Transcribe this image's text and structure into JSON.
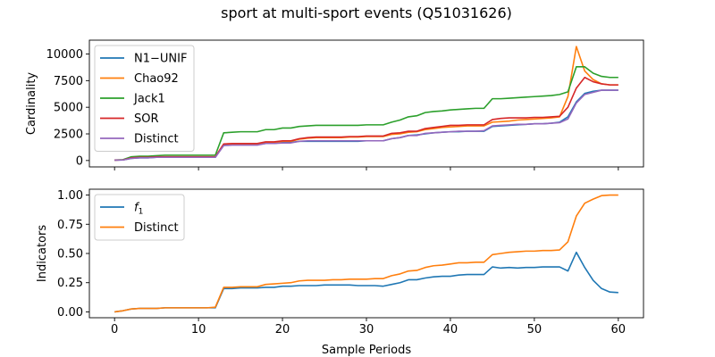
{
  "figure_title": "sport at multi-sport events (Q51031626)",
  "chart_data": [
    {
      "type": "line",
      "title": "",
      "xlabel": "",
      "ylabel": "Cardinality",
      "xlim": [
        -3,
        63
      ],
      "ylim": [
        -600,
        11300
      ],
      "x_ticks": [
        0,
        10,
        20,
        30,
        40,
        50,
        60
      ],
      "y_ticks": [
        0,
        2500,
        5000,
        7500,
        10000
      ],
      "y_tick_labels": [
        "0",
        "2500",
        "5000",
        "7500",
        "10000"
      ],
      "show_x_tick_labels": false,
      "legend_position": "upper-left",
      "x": [
        0,
        1,
        2,
        3,
        4,
        5,
        6,
        7,
        8,
        9,
        10,
        11,
        12,
        13,
        14,
        15,
        16,
        17,
        18,
        19,
        20,
        21,
        22,
        23,
        24,
        25,
        26,
        27,
        28,
        29,
        30,
        31,
        32,
        33,
        34,
        35,
        36,
        37,
        38,
        39,
        40,
        41,
        42,
        43,
        44,
        45,
        46,
        47,
        48,
        49,
        50,
        51,
        52,
        53,
        54,
        55,
        56,
        57,
        58,
        59,
        60
      ],
      "series": [
        {
          "name": "N1−UNIF",
          "color": "#1f77b4",
          "values": [
            30,
            50,
            200,
            250,
            250,
            300,
            300,
            300,
            300,
            300,
            300,
            300,
            300,
            1500,
            1500,
            1500,
            1500,
            1500,
            1600,
            1600,
            1700,
            1700,
            1800,
            1800,
            1800,
            1800,
            1800,
            1800,
            1800,
            1800,
            1850,
            1850,
            1850,
            2050,
            2150,
            2350,
            2400,
            2500,
            2600,
            2650,
            2700,
            2700,
            2750,
            2750,
            2750,
            3200,
            3250,
            3300,
            3350,
            3400,
            3450,
            3450,
            3500,
            3600,
            4100,
            5500,
            6300,
            6500,
            6600,
            6600,
            6600
          ]
        },
        {
          "name": "Chao92",
          "color": "#ff7f0e",
          "values": [
            30,
            60,
            250,
            300,
            300,
            350,
            350,
            350,
            350,
            350,
            350,
            350,
            350,
            1550,
            1550,
            1550,
            1550,
            1550,
            1700,
            1700,
            1800,
            1800,
            2000,
            2100,
            2150,
            2150,
            2150,
            2150,
            2200,
            2200,
            2250,
            2250,
            2250,
            2450,
            2500,
            2650,
            2700,
            2900,
            3000,
            3100,
            3150,
            3200,
            3250,
            3250,
            3250,
            3600,
            3650,
            3700,
            3800,
            3850,
            3900,
            3950,
            4000,
            4100,
            6000,
            10700,
            8400,
            7600,
            7200,
            7100,
            7100
          ]
        },
        {
          "name": "Jack1",
          "color": "#2ca02c",
          "values": [
            50,
            80,
            350,
            400,
            400,
            450,
            500,
            500,
            500,
            500,
            500,
            500,
            500,
            2600,
            2650,
            2700,
            2700,
            2700,
            2900,
            2900,
            3050,
            3050,
            3200,
            3250,
            3300,
            3300,
            3300,
            3300,
            3300,
            3300,
            3350,
            3350,
            3350,
            3600,
            3800,
            4100,
            4200,
            4500,
            4600,
            4650,
            4750,
            4800,
            4850,
            4900,
            4900,
            5800,
            5800,
            5850,
            5900,
            5950,
            6000,
            6050,
            6100,
            6200,
            6450,
            8800,
            8800,
            8200,
            7900,
            7800,
            7800
          ]
        },
        {
          "name": "SOR",
          "color": "#d62728",
          "values": [
            40,
            60,
            250,
            300,
            300,
            350,
            350,
            350,
            350,
            350,
            350,
            350,
            350,
            1550,
            1600,
            1600,
            1600,
            1600,
            1750,
            1750,
            1850,
            1850,
            2050,
            2150,
            2200,
            2200,
            2200,
            2200,
            2250,
            2250,
            2300,
            2300,
            2300,
            2550,
            2600,
            2750,
            2750,
            3000,
            3100,
            3200,
            3300,
            3300,
            3350,
            3350,
            3350,
            3850,
            3950,
            4000,
            4000,
            4000,
            4050,
            4050,
            4100,
            4150,
            5000,
            6800,
            7800,
            7400,
            7200,
            7100,
            7100
          ]
        },
        {
          "name": "Distinct",
          "color": "#9467bd",
          "values": [
            30,
            50,
            200,
            250,
            250,
            300,
            300,
            300,
            300,
            300,
            300,
            300,
            300,
            1400,
            1450,
            1450,
            1450,
            1450,
            1600,
            1600,
            1650,
            1650,
            1800,
            1850,
            1850,
            1850,
            1850,
            1850,
            1850,
            1850,
            1850,
            1850,
            1850,
            2050,
            2150,
            2350,
            2350,
            2550,
            2600,
            2650,
            2700,
            2750,
            2750,
            2750,
            2800,
            3250,
            3300,
            3350,
            3400,
            3400,
            3450,
            3450,
            3500,
            3550,
            3900,
            5400,
            6200,
            6400,
            6600,
            6600,
            6600
          ]
        }
      ]
    },
    {
      "type": "line",
      "title": "",
      "xlabel": "Sample Periods",
      "ylabel": "Indicators",
      "xlim": [
        -3,
        63
      ],
      "ylim": [
        -0.05,
        1.05
      ],
      "x_ticks": [
        0,
        10,
        20,
        30,
        40,
        50,
        60
      ],
      "x_tick_labels": [
        "0",
        "10",
        "20",
        "30",
        "40",
        "50",
        "60"
      ],
      "y_ticks": [
        0,
        0.25,
        0.5,
        0.75,
        1
      ],
      "y_tick_labels": [
        "0.00",
        "0.25",
        "0.50",
        "0.75",
        "1.00"
      ],
      "show_x_tick_labels": true,
      "legend_position": "upper-left",
      "x": [
        0,
        1,
        2,
        3,
        4,
        5,
        6,
        7,
        8,
        9,
        10,
        11,
        12,
        13,
        14,
        15,
        16,
        17,
        18,
        19,
        20,
        21,
        22,
        23,
        24,
        25,
        26,
        27,
        28,
        29,
        30,
        31,
        32,
        33,
        34,
        35,
        36,
        37,
        38,
        39,
        40,
        41,
        42,
        43,
        44,
        45,
        46,
        47,
        48,
        49,
        50,
        51,
        52,
        53,
        54,
        55,
        56,
        57,
        58,
        59,
        60
      ],
      "series": [
        {
          "name_main": "f",
          "name_sub": "1",
          "color": "#1f77b4",
          "values": [
            0.0,
            0.01,
            0.025,
            0.03,
            0.03,
            0.03,
            0.035,
            0.035,
            0.035,
            0.035,
            0.035,
            0.035,
            0.035,
            0.2,
            0.2,
            0.205,
            0.205,
            0.205,
            0.21,
            0.21,
            0.22,
            0.22,
            0.225,
            0.225,
            0.225,
            0.23,
            0.23,
            0.23,
            0.23,
            0.225,
            0.225,
            0.225,
            0.22,
            0.235,
            0.25,
            0.275,
            0.275,
            0.29,
            0.3,
            0.305,
            0.305,
            0.315,
            0.32,
            0.32,
            0.32,
            0.385,
            0.375,
            0.38,
            0.375,
            0.38,
            0.38,
            0.385,
            0.385,
            0.385,
            0.35,
            0.51,
            0.38,
            0.27,
            0.2,
            0.17,
            0.165
          ]
        },
        {
          "name": "Distinct",
          "color": "#ff7f0e",
          "values": [
            0.0,
            0.01,
            0.025,
            0.03,
            0.03,
            0.03,
            0.035,
            0.035,
            0.035,
            0.035,
            0.035,
            0.035,
            0.04,
            0.21,
            0.21,
            0.215,
            0.215,
            0.215,
            0.235,
            0.24,
            0.245,
            0.25,
            0.265,
            0.27,
            0.27,
            0.27,
            0.275,
            0.275,
            0.28,
            0.28,
            0.28,
            0.285,
            0.285,
            0.31,
            0.325,
            0.35,
            0.355,
            0.38,
            0.395,
            0.4,
            0.41,
            0.42,
            0.42,
            0.425,
            0.425,
            0.49,
            0.5,
            0.51,
            0.515,
            0.52,
            0.52,
            0.525,
            0.525,
            0.53,
            0.6,
            0.82,
            0.93,
            0.965,
            0.995,
            1.0,
            1.0
          ]
        }
      ]
    }
  ]
}
